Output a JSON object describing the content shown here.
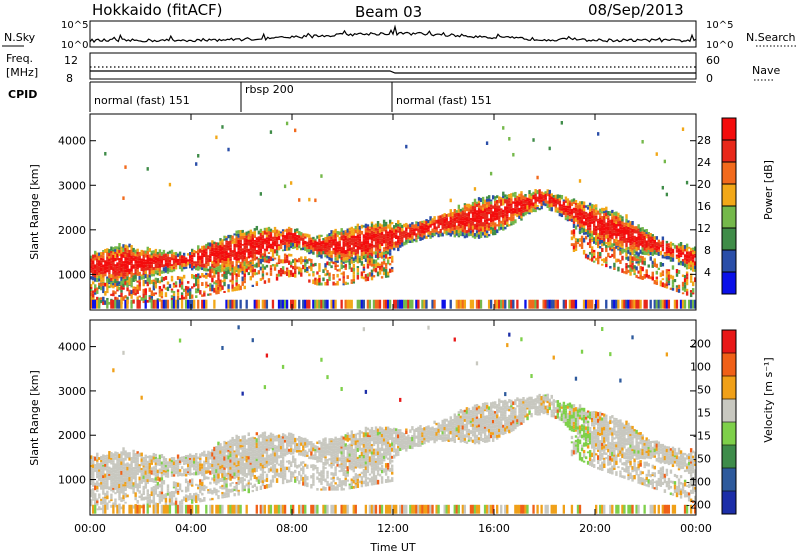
{
  "header": {
    "station": "Hokkaido (fitACF)",
    "beam": "Beam 03",
    "date": "08/Sep/2013"
  },
  "sky_panel": {
    "left_label": "N.Sky",
    "right_label": "N.Search",
    "left_ticks": [
      "10^5",
      "10^0"
    ],
    "right_ticks": [
      "10^5",
      "10^0"
    ]
  },
  "freq_panel": {
    "left_label_line1": "Freq.",
    "left_label_line2": "[MHz]",
    "right_label": "Nave",
    "left_ticks": [
      "12",
      "8"
    ],
    "right_ticks": [
      "60",
      "0"
    ]
  },
  "cpid_panel": {
    "label": "CPID",
    "segments": [
      {
        "start_hour": 0,
        "end_hour": 6,
        "label": "normal (fast) 151"
      },
      {
        "start_hour": 6,
        "end_hour": 12,
        "label": "rbsp 200"
      },
      {
        "start_hour": 12,
        "end_hour": 24,
        "label": "normal (fast) 151"
      }
    ]
  },
  "power_panel": {
    "ylabel": "Slant Range [km]",
    "y_ticks": [
      1000,
      2000,
      3000,
      4000
    ],
    "ylim": [
      200,
      4600
    ],
    "colorbar_title": "Power [dB]",
    "colorbar_ticks": [
      "28",
      "24",
      "20",
      "16",
      "12",
      "8",
      "4"
    ],
    "colors": [
      "#0a10e8",
      "#2a4ea8",
      "#3f8c48",
      "#74b84a",
      "#f2a818",
      "#f26a1c",
      "#e8281a",
      "#f40c0c"
    ]
  },
  "velocity_panel": {
    "ylabel": "Slant Range [km]",
    "y_ticks": [
      1000,
      2000,
      3000,
      4000
    ],
    "ylim": [
      200,
      4600
    ],
    "colorbar_title": "Velocity [m s⁻¹]",
    "colorbar_ticks": [
      "200",
      "100",
      "50",
      "15",
      "-15",
      "-50",
      "-100",
      "-200"
    ],
    "colors": [
      "#1c2ea8",
      "#2e5a9c",
      "#3e8c4a",
      "#7ed04a",
      "#c8c8c0",
      "#f0a018",
      "#f06018",
      "#e81818"
    ]
  },
  "x_axis": {
    "label": "Time UT",
    "ticks": [
      "00:00",
      "04:00",
      "08:00",
      "12:00",
      "16:00",
      "20:00",
      "00:00"
    ]
  },
  "chart_data": [
    {
      "type": "heatmap",
      "name_role": "power",
      "x_range_hours": [
        0,
        24
      ],
      "ylim": [
        200,
        4600
      ],
      "ylabel": "Slant Range [km]",
      "xlabel": "Time UT",
      "colorbar_label": "Power [dB]",
      "colorbar_range": [
        0,
        32
      ],
      "main_band_center_km": [
        [
          0,
          1150
        ],
        [
          2,
          1200
        ],
        [
          4,
          1300
        ],
        [
          6,
          1500
        ],
        [
          8,
          1800
        ],
        [
          9,
          1600
        ],
        [
          10,
          1600
        ],
        [
          12,
          1800
        ],
        [
          14,
          2100
        ],
        [
          16,
          2300
        ],
        [
          18,
          2700
        ],
        [
          19,
          2400
        ],
        [
          20,
          2100
        ],
        [
          22,
          1700
        ],
        [
          24,
          1300
        ]
      ],
      "main_band_power_db": 28
    },
    {
      "type": "heatmap",
      "name_role": "velocity",
      "x_range_hours": [
        0,
        24
      ],
      "ylim": [
        200,
        4600
      ],
      "ylabel": "Slant Range [km]",
      "xlabel": "Time UT",
      "colorbar_label": "Velocity [m s⁻¹]",
      "colorbar_range": [
        -200,
        200
      ],
      "dominant_velocity_class": "-15 to 15"
    }
  ]
}
